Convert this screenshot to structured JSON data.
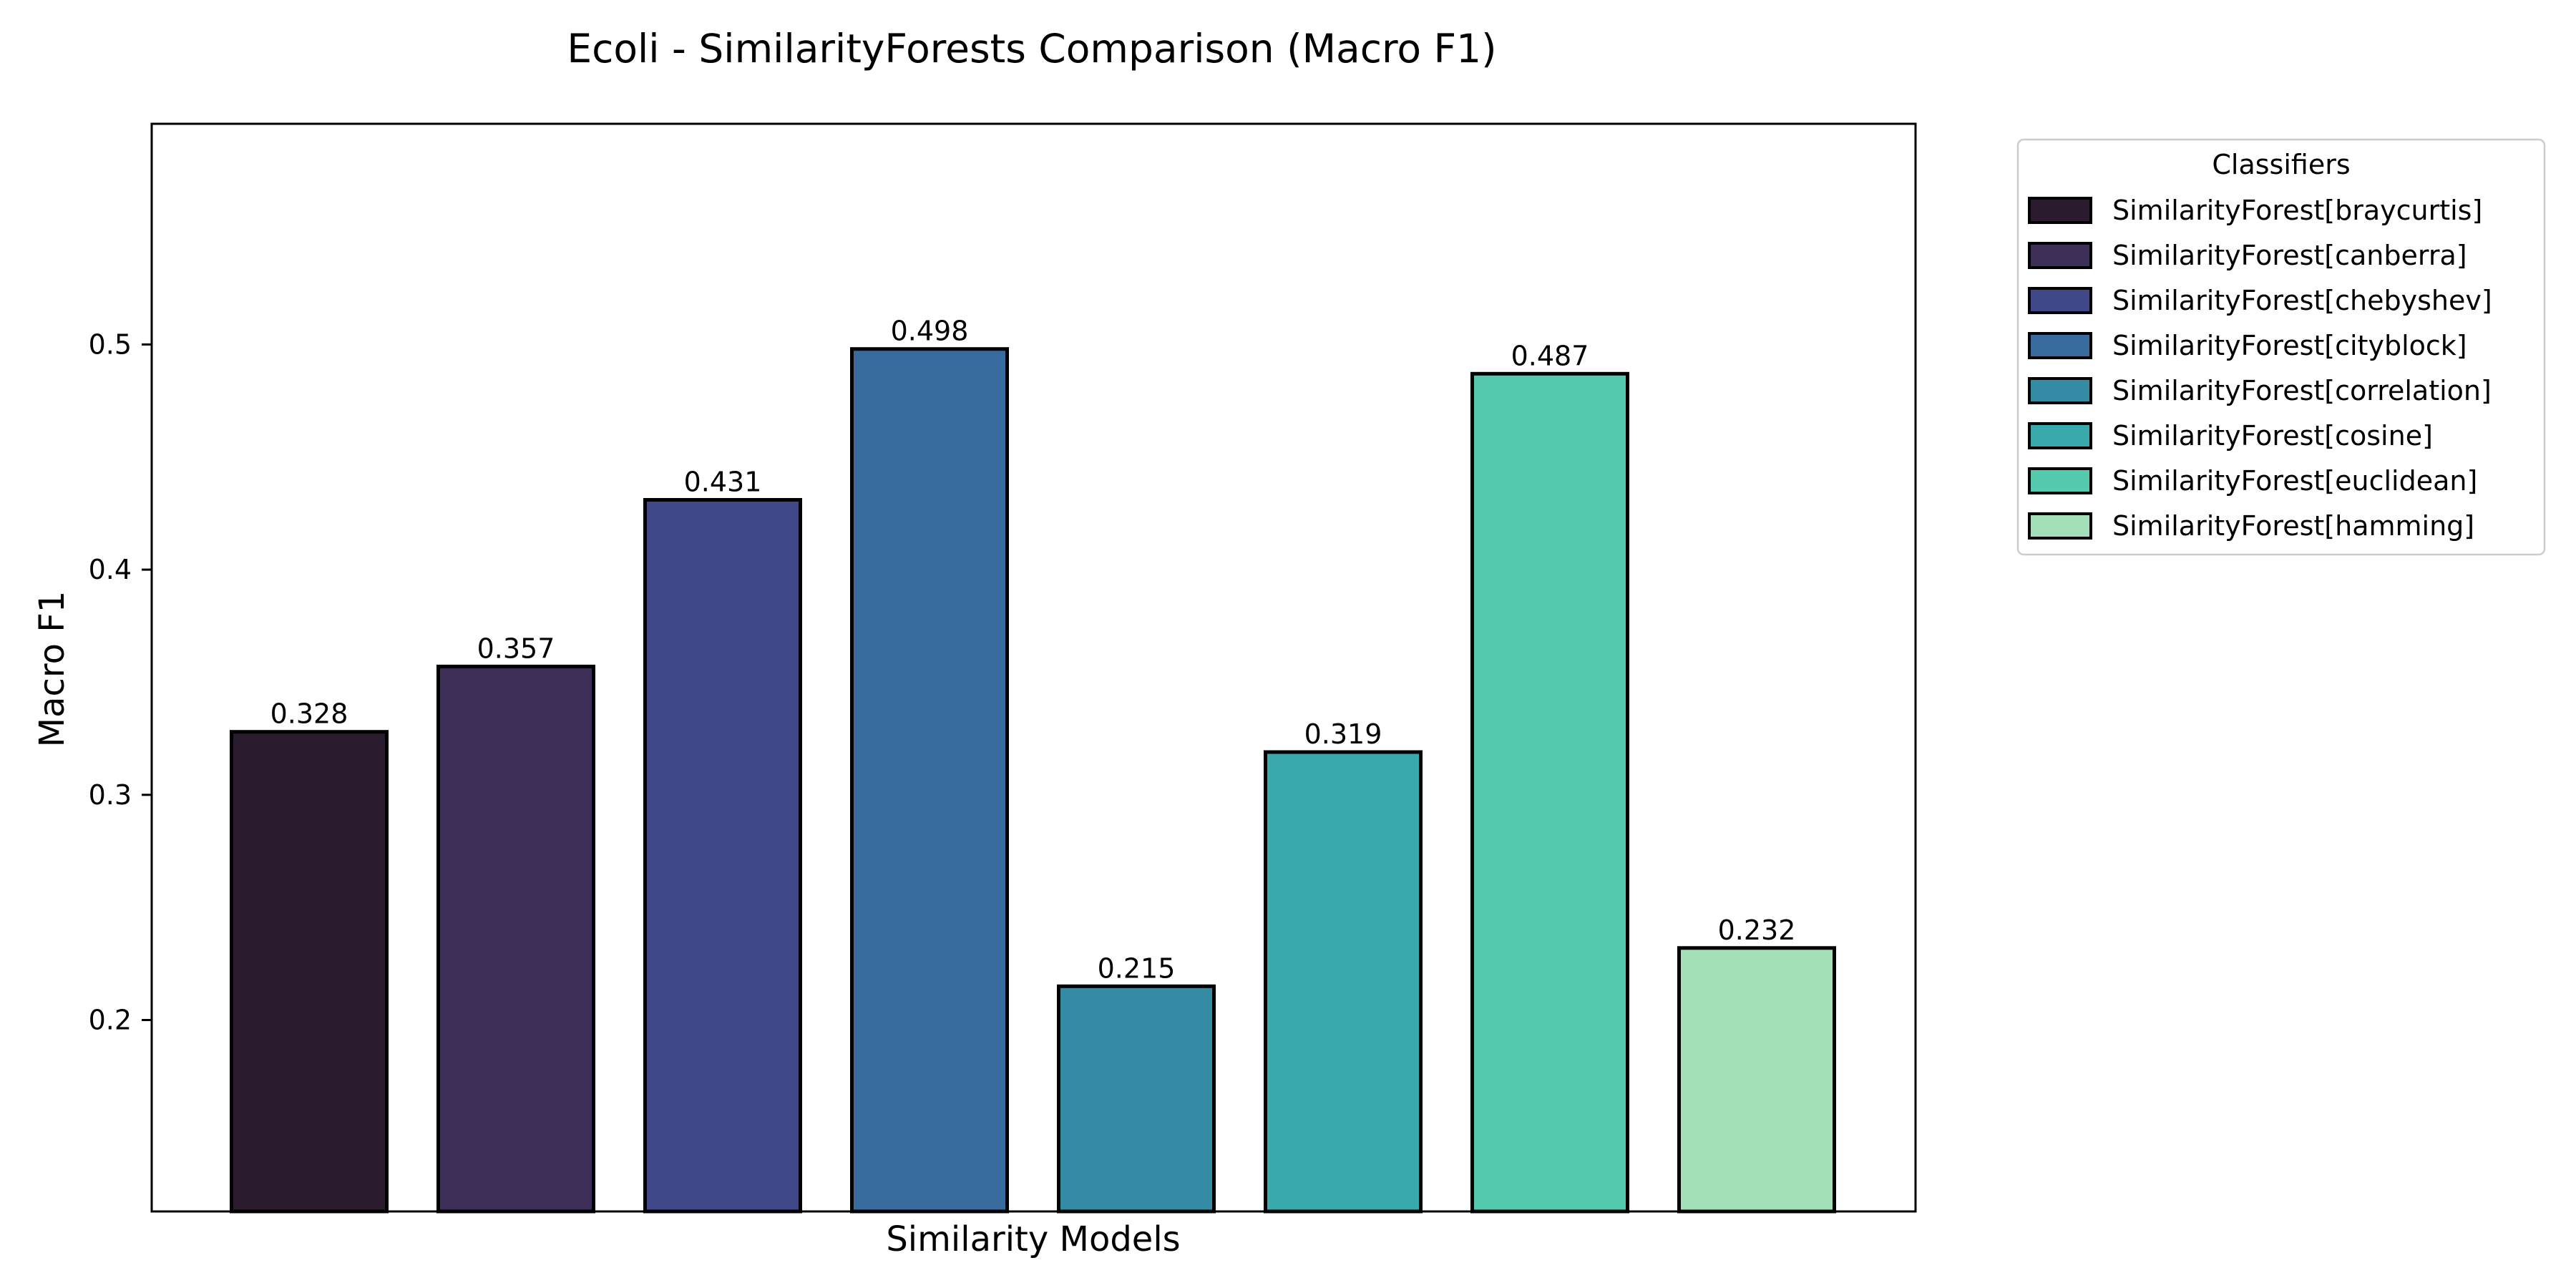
{
  "chart_data": {
    "type": "bar",
    "title": "Ecoli - SimilarityForests Comparison (Macro F1)",
    "xlabel": "Similarity Models",
    "ylabel": "Macro F1",
    "ylim": [
      0.115,
      0.598
    ],
    "yticks": [
      0.2,
      0.3,
      0.4,
      0.5
    ],
    "grid": false,
    "legend": {
      "title": "Classifiers",
      "placement": "outside-top-right"
    },
    "categories": [
      "SimilarityForest[braycurtis]",
      "SimilarityForest[canberra]",
      "SimilarityForest[chebyshev]",
      "SimilarityForest[cityblock]",
      "SimilarityForest[correlation]",
      "SimilarityForest[cosine]",
      "SimilarityForest[euclidean]",
      "SimilarityForest[hamming]"
    ],
    "values": [
      0.328,
      0.357,
      0.431,
      0.498,
      0.215,
      0.319,
      0.487,
      0.232
    ],
    "value_labels": [
      "0.328",
      "0.357",
      "0.431",
      "0.498",
      "0.215",
      "0.319",
      "0.487",
      "0.232"
    ],
    "colors": [
      "#2a1b2e",
      "#3d2e57",
      "#40488a",
      "#386b9e",
      "#348ba4",
      "#39a9ac",
      "#55c9ad",
      "#a2dfb8"
    ]
  }
}
